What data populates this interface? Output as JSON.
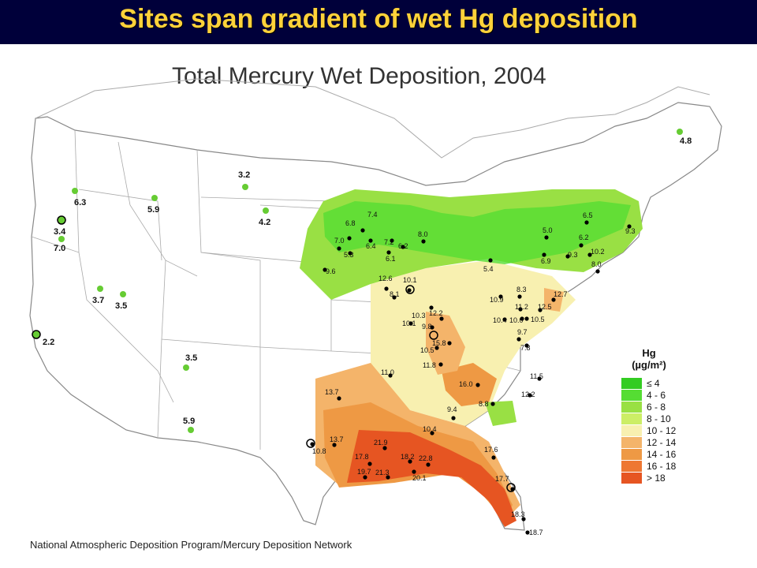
{
  "banner": {
    "title": "Sites span gradient of wet Hg deposition"
  },
  "map": {
    "title": "Total Mercury Wet Deposition, 2004",
    "credit": "National Atmospheric Deposition Program/Mercury Deposition Network",
    "legend": {
      "title": "Hg",
      "units": "(µg/m²)",
      "classes": [
        {
          "label": "≤ 4",
          "color": "#33cc22"
        },
        {
          "label": "4 - 6",
          "color": "#55dd33"
        },
        {
          "label": "6 - 8",
          "color": "#99e044"
        },
        {
          "label": "8 - 10",
          "color": "#ccee66"
        },
        {
          "label": "10 - 12",
          "color": "#f8f0b0"
        },
        {
          "label": "12 - 14",
          "color": "#f4b46a"
        },
        {
          "label": "14 - 16",
          "color": "#ee9944"
        },
        {
          "label": "16 - 18",
          "color": "#ee7733"
        },
        {
          "label": "> 18",
          "color": "#e65522"
        }
      ]
    },
    "western_sites": [
      {
        "label": "6.3"
      },
      {
        "label": "5.9"
      },
      {
        "label": "3.2"
      },
      {
        "label": "4.2"
      },
      {
        "label": "3.4"
      },
      {
        "label": "7.0"
      },
      {
        "label": "3.7"
      },
      {
        "label": "3.5"
      },
      {
        "label": "2.2"
      },
      {
        "label": "3.5"
      },
      {
        "label": "5.9"
      },
      {
        "label": "4.8"
      }
    ],
    "eastern_sites": [
      "7.4",
      "6.8",
      "7.0",
      "5.3",
      "6.4",
      "7.2",
      "6.2",
      "6.1",
      "8.0",
      "9.6",
      "12.6",
      "10.1",
      "8.1",
      "6.5",
      "5.0",
      "6.2",
      "9.3",
      "6.9",
      "10.2",
      "8.0",
      "9.3",
      "5.4",
      "10.9",
      "8.3",
      "12.7",
      "11.2",
      "12.5",
      "10.5",
      "10.4",
      "10.0",
      "9.7",
      "7.8",
      "10.3",
      "12.2",
      "10.1",
      "9.8",
      "15.8",
      "10.5",
      "11.8",
      "11.0",
      "16.0",
      "11.5",
      "12.2",
      "8.8",
      "9.4",
      "13.7",
      "10.4",
      "13.7",
      "10.8",
      "21.9",
      "17.8",
      "18.2",
      "22.8",
      "19.7",
      "21.3",
      "20.1",
      "17.6",
      "17.7",
      "18.3",
      "18.7"
    ]
  }
}
